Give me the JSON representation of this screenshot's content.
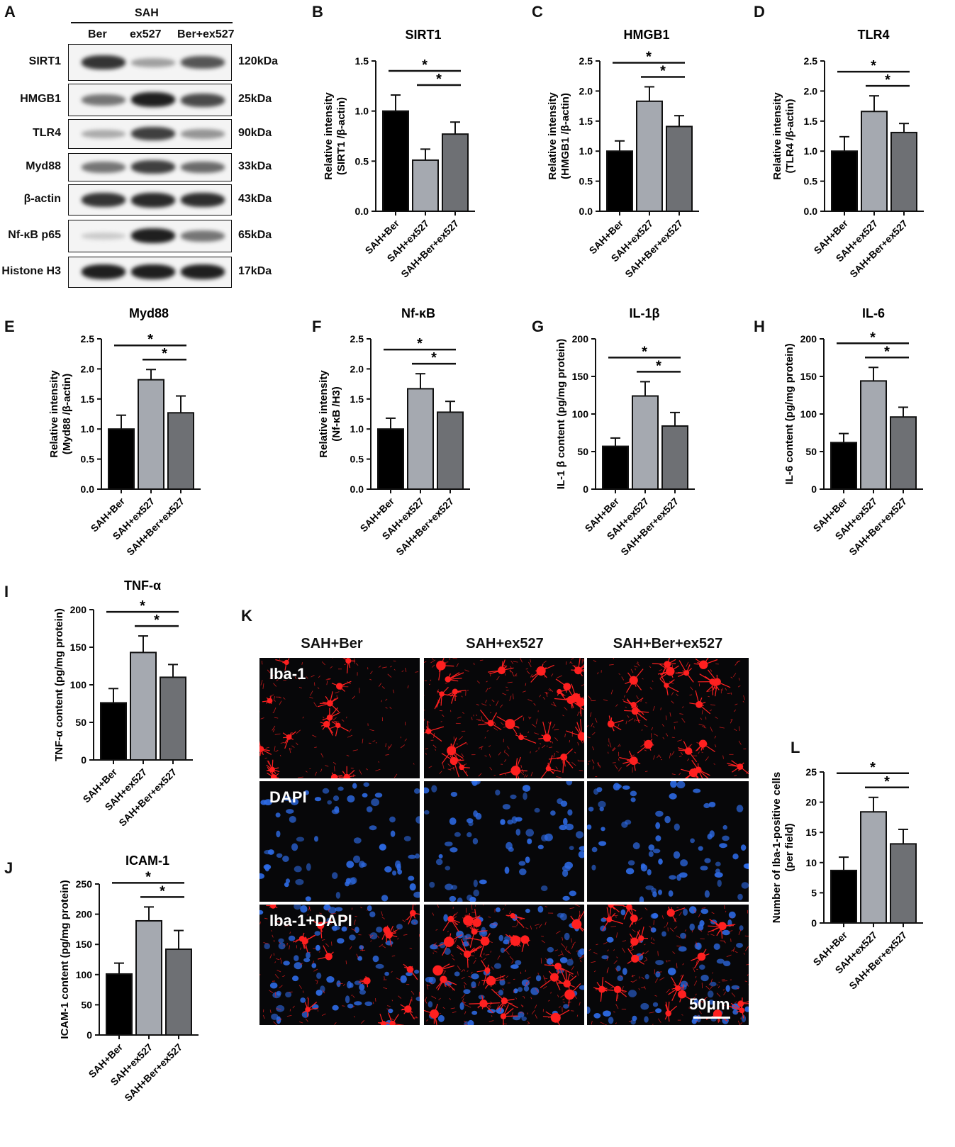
{
  "panel_letters": {
    "A": "A",
    "B": "B",
    "C": "C",
    "D": "D",
    "E": "E",
    "F": "F",
    "G": "G",
    "H": "H",
    "I": "I",
    "J": "J",
    "K": "K",
    "L": "L"
  },
  "western_blot": {
    "group_header": "SAH",
    "lanes": [
      "Ber",
      "ex527",
      "Ber+ex527"
    ],
    "rows": [
      {
        "protein": "SIRT1",
        "size": "120kDa",
        "intensity": [
          0.85,
          0.35,
          0.7
        ]
      },
      {
        "protein": "HMGB1",
        "size": "25kDa",
        "intensity": [
          0.55,
          0.95,
          0.75
        ]
      },
      {
        "protein": "TLR4",
        "size": "90kDa",
        "intensity": [
          0.3,
          0.8,
          0.4
        ]
      },
      {
        "protein": "Myd88",
        "size": "33kDa",
        "intensity": [
          0.55,
          0.8,
          0.6
        ]
      },
      {
        "protein": "β-actin",
        "size": "43kDa",
        "intensity": [
          0.85,
          0.9,
          0.88
        ]
      },
      {
        "protein": "Nf-κB p65",
        "size": "65kDa",
        "intensity": [
          0.15,
          0.95,
          0.55
        ]
      },
      {
        "protein": "Histone H3",
        "size": "17kDa",
        "intensity": [
          0.95,
          0.95,
          0.95
        ]
      }
    ]
  },
  "colors": {
    "bar1": "#000000",
    "bar2": "#a5a9b0",
    "bar3": "#6e7074",
    "iba1": "#ff2020",
    "dapi": "#2e6be6",
    "fluor_bg": "#070709"
  },
  "chart_data": [
    {
      "id": "B",
      "type": "bar",
      "title": "SIRT1",
      "ylabel_line1": "Relative intensity",
      "ylabel_line2": "(SIRT1 /β-actin)",
      "categories": [
        "SAH+Ber",
        "SAH+ex527",
        "SAH+Ber+ex527"
      ],
      "values": [
        1.0,
        0.51,
        0.77
      ],
      "errors": [
        0.16,
        0.11,
        0.12
      ],
      "ylim": [
        0,
        1.5
      ],
      "yticks": [
        "0.0",
        "0.5",
        "1.0",
        "1.5"
      ],
      "sig": [
        {
          "from": 0,
          "to": 2,
          "label": "*"
        },
        {
          "from": 1,
          "to": 2,
          "label": "*"
        }
      ]
    },
    {
      "id": "C",
      "type": "bar",
      "title": "HMGB1",
      "ylabel_line1": "Relative intensity",
      "ylabel_line2": "(HMGB1 /β-actin)",
      "categories": [
        "SAH+Ber",
        "SAH+ex527",
        "SAH+Ber+ex527"
      ],
      "values": [
        1.0,
        1.83,
        1.41
      ],
      "errors": [
        0.17,
        0.24,
        0.18
      ],
      "ylim": [
        0,
        2.5
      ],
      "yticks": [
        "0.0",
        "0.5",
        "1.0",
        "1.5",
        "2.0",
        "2.5"
      ],
      "sig": [
        {
          "from": 0,
          "to": 2,
          "label": "*"
        },
        {
          "from": 1,
          "to": 2,
          "label": "*"
        }
      ]
    },
    {
      "id": "D",
      "type": "bar",
      "title": "TLR4",
      "ylabel_line1": "Relative intensity",
      "ylabel_line2": "(TLR4 /β-actin)",
      "categories": [
        "SAH+Ber",
        "SAH+ex527",
        "SAH+Ber+ex527"
      ],
      "values": [
        1.0,
        1.66,
        1.31
      ],
      "errors": [
        0.24,
        0.26,
        0.15
      ],
      "ylim": [
        0,
        2.5
      ],
      "yticks": [
        "0.0",
        "0.5",
        "1.0",
        "1.5",
        "2.0",
        "2.5"
      ],
      "sig": [
        {
          "from": 0,
          "to": 2,
          "label": "*"
        },
        {
          "from": 1,
          "to": 2,
          "label": "*"
        }
      ]
    },
    {
      "id": "E",
      "type": "bar",
      "title": "Myd88",
      "ylabel_line1": "Relative intensity",
      "ylabel_line2": "(Myd88 /β-actin)",
      "categories": [
        "SAH+Ber",
        "SAH+ex527",
        "SAH+Ber+ex527"
      ],
      "values": [
        1.0,
        1.82,
        1.27
      ],
      "errors": [
        0.23,
        0.17,
        0.28
      ],
      "ylim": [
        0,
        2.5
      ],
      "yticks": [
        "0.0",
        "0.5",
        "1.0",
        "1.5",
        "2.0",
        "2.5"
      ],
      "sig": [
        {
          "from": 0,
          "to": 2,
          "label": "*"
        },
        {
          "from": 1,
          "to": 2,
          "label": "*"
        }
      ]
    },
    {
      "id": "F",
      "type": "bar",
      "title": "Nf-κB",
      "ylabel_line1": "Relative intensity",
      "ylabel_line2": "(Nf-κB /H3)",
      "categories": [
        "SAH+Ber",
        "SAH+ex527",
        "SAH+Ber+ex527"
      ],
      "values": [
        1.0,
        1.67,
        1.28
      ],
      "errors": [
        0.18,
        0.25,
        0.18
      ],
      "ylim": [
        0,
        2.5
      ],
      "yticks": [
        "0.0",
        "0.5",
        "1.0",
        "1.5",
        "2.0",
        "2.5"
      ],
      "sig": [
        {
          "from": 0,
          "to": 2,
          "label": "*"
        },
        {
          "from": 1,
          "to": 2,
          "label": "*"
        }
      ]
    },
    {
      "id": "G",
      "type": "bar",
      "title": "IL-1β",
      "ylabel_line1": "IL-1 β content  (pg/mg protein)",
      "ylabel_line2": "",
      "categories": [
        "SAH+Ber",
        "SAH+ex527",
        "SAH+Ber+ex527"
      ],
      "values": [
        57,
        124,
        84
      ],
      "errors": [
        11,
        19,
        18
      ],
      "ylim": [
        0,
        200
      ],
      "yticks": [
        "0",
        "50",
        "100",
        "150",
        "200"
      ],
      "sig": [
        {
          "from": 0,
          "to": 2,
          "label": "*"
        },
        {
          "from": 1,
          "to": 2,
          "label": "*"
        }
      ]
    },
    {
      "id": "H",
      "type": "bar",
      "title": "IL-6",
      "ylabel_line1": "IL-6 content  (pg/mg protein)",
      "ylabel_line2": "",
      "categories": [
        "SAH+Ber",
        "SAH+ex527",
        "SAH+Ber+ex527"
      ],
      "values": [
        62,
        144,
        96
      ],
      "errors": [
        12,
        18,
        13
      ],
      "ylim": [
        0,
        200
      ],
      "yticks": [
        "0",
        "50",
        "100",
        "150",
        "200"
      ],
      "sig": [
        {
          "from": 0,
          "to": 2,
          "label": "*"
        },
        {
          "from": 1,
          "to": 2,
          "label": "*"
        }
      ]
    },
    {
      "id": "I",
      "type": "bar",
      "title": "TNF-α",
      "ylabel_line1": "TNF-α content  (pg/mg protein)",
      "ylabel_line2": "",
      "categories": [
        "SAH+Ber",
        "SAH+ex527",
        "SAH+Ber+ex527"
      ],
      "values": [
        76,
        143,
        110
      ],
      "errors": [
        19,
        22,
        17
      ],
      "ylim": [
        0,
        200
      ],
      "yticks": [
        "0",
        "50",
        "100",
        "150",
        "200"
      ],
      "sig": [
        {
          "from": 0,
          "to": 2,
          "label": "*"
        },
        {
          "from": 1,
          "to": 2,
          "label": "*"
        }
      ]
    },
    {
      "id": "J",
      "type": "bar",
      "title": "ICAM-1",
      "ylabel_line1": "ICAM-1 content  (pg/mg protein)",
      "ylabel_line2": "",
      "categories": [
        "SAH+Ber",
        "SAH+ex527",
        "SAH+Ber+ex527"
      ],
      "values": [
        101,
        189,
        142
      ],
      "errors": [
        18,
        23,
        31
      ],
      "ylim": [
        0,
        250
      ],
      "yticks": [
        "0",
        "50",
        "100",
        "150",
        "200",
        "250"
      ],
      "sig": [
        {
          "from": 0,
          "to": 2,
          "label": "*"
        },
        {
          "from": 1,
          "to": 2,
          "label": "*"
        }
      ]
    },
    {
      "id": "L",
      "type": "bar",
      "title": "",
      "ylabel_line1": "Number of Iba-1-positive cells",
      "ylabel_line2": "(per field)",
      "categories": [
        "SAH+Ber",
        "SAH+ex527",
        "SAH+Ber+ex527"
      ],
      "values": [
        8.7,
        18.4,
        13.1
      ],
      "errors": [
        2.2,
        2.4,
        2.4
      ],
      "ylim": [
        0,
        25
      ],
      "yticks": [
        "0",
        "5",
        "10",
        "15",
        "20",
        "25"
      ],
      "sig": [
        {
          "from": 0,
          "to": 2,
          "label": "*"
        },
        {
          "from": 1,
          "to": 2,
          "label": "*"
        }
      ]
    }
  ],
  "microscopy": {
    "columns": [
      "SAH+Ber",
      "SAH+ex527",
      "SAH+Ber+ex527"
    ],
    "rows": [
      "Iba-1",
      "DAPI",
      "Iba-1+DAPI"
    ],
    "scale_bar": "50μm",
    "iba1_density": [
      0.45,
      1.0,
      0.7
    ]
  }
}
